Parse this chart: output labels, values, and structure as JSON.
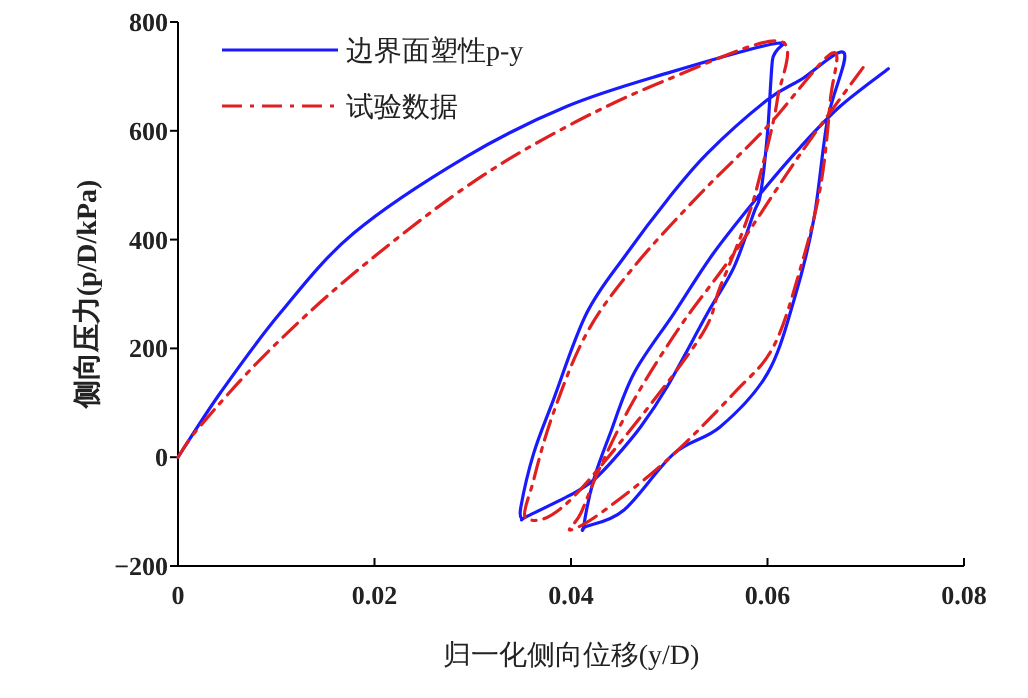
{
  "chart_data": {
    "type": "line",
    "xlabel": "归一化侧向位移(y/D)",
    "ylabel": "侧向压力(p/D/kPa)",
    "xlim": [
      0,
      0.08
    ],
    "xticks": [
      0,
      0.02,
      0.04,
      0.06,
      0.08
    ],
    "ylim": [
      -200,
      800
    ],
    "yticks": [
      -200,
      0,
      200,
      400,
      600,
      800
    ],
    "grid": false,
    "legend": "top left",
    "marker": "none",
    "series": [
      {
        "name": "边界面塑性p-y",
        "color": "#1a1aff",
        "line_style": "solid",
        "x": [
          0,
          0.0043,
          0.0104,
          0.0179,
          0.0294,
          0.0396,
          0.0498,
          0.061,
          0.0605,
          0.06,
          0.0593,
          0.0586,
          0.0566,
          0.0539,
          0.0498,
          0.0471,
          0.0443,
          0.0423,
          0.0403,
          0.0355,
          0.035,
          0.0349,
          0.0362,
          0.0382,
          0.0416,
          0.0457,
          0.0498,
          0.0539,
          0.06,
          0.0634,
          0.0678,
          0.0661,
          0.0647,
          0.0627,
          0.06,
          0.0552,
          0.0505,
          0.0454,
          0.0416,
          0.0413,
          0.0423,
          0.044,
          0.0464,
          0.0505,
          0.0545,
          0.0593,
          0.0634,
          0.0674,
          0.0723
        ],
        "values": [
          0,
          118,
          265,
          412,
          553,
          645,
          706,
          761,
          730,
          596,
          485,
          449,
          350,
          265,
          130,
          56,
          -5,
          -42,
          -66,
          -109,
          -113,
          -91,
          7,
          105,
          265,
          375,
          473,
          559,
          657,
          694,
          743,
          620,
          436,
          289,
          154,
          56,
          7,
          -97,
          -127,
          -127,
          -42,
          44,
          154,
          265,
          375,
          485,
          571,
          645,
          714
        ]
      },
      {
        "name": "试验数据",
        "color": "#e02020",
        "line_style": "dashdot",
        "x": [
          0,
          0.0022,
          0.009,
          0.0179,
          0.0294,
          0.0396,
          0.0498,
          0.0612,
          0.061,
          0.0593,
          0.0579,
          0.0552,
          0.0525,
          0.0403,
          0.0355,
          0.0362,
          0.0382,
          0.0416,
          0.0464,
          0.0532,
          0.06,
          0.0666,
          0.0664,
          0.0654,
          0.0634,
          0.0606,
          0.0566,
          0.0498,
          0.043,
          0.0399,
          0.041,
          0.043,
          0.0464,
          0.0511,
          0.0566,
          0.0634,
          0.0698
        ],
        "values": [
          0,
          56,
          191,
          338,
          498,
          608,
          694,
          765,
          657,
          522,
          436,
          314,
          203,
          -72,
          -113,
          -42,
          81,
          228,
          350,
          485,
          608,
          743,
          657,
          498,
          350,
          203,
          118,
          -5,
          -103,
          -134,
          -103,
          -17,
          105,
          240,
          375,
          559,
          718
        ]
      }
    ]
  }
}
